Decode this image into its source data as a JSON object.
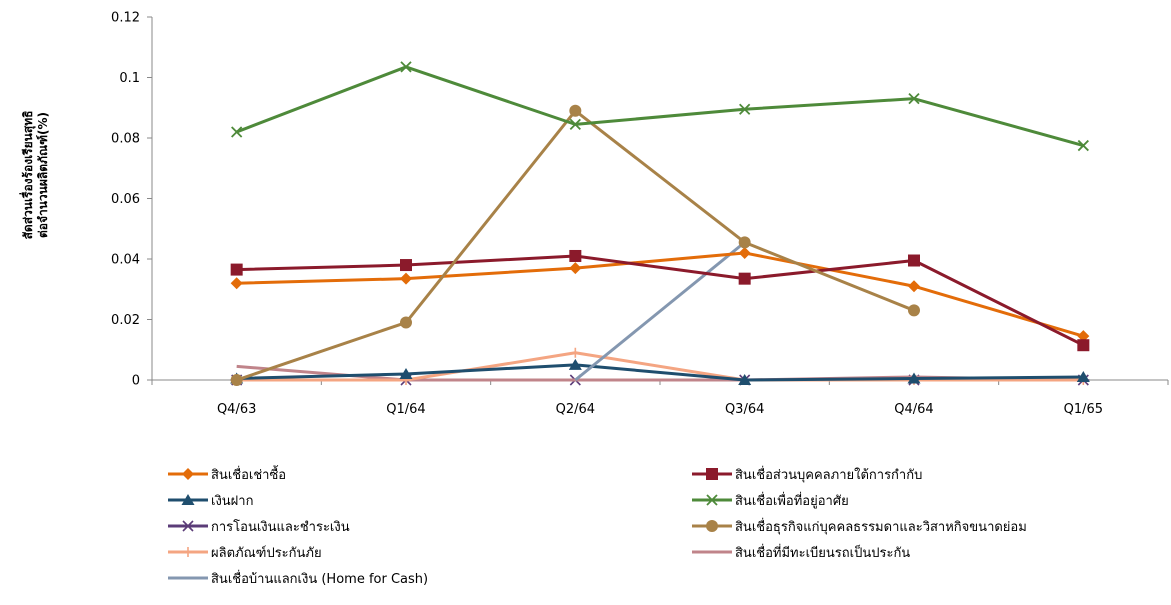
{
  "chart_data": {
    "type": "line",
    "title": "",
    "ylabel": [
      "สัดส่วนเรื่องร้องเรียนสุทธิ",
      "ต่อจำนวนผลิตภัณฑ์(%)"
    ],
    "xlabel": "",
    "categories": [
      "Q4/63",
      "Q1/64",
      "Q2/64",
      "Q3/64",
      "Q4/64",
      "Q1/65"
    ],
    "ylim": [
      0,
      0.12
    ],
    "yticks": [
      "0",
      "0.02",
      "0.04",
      "0.06",
      "0.08",
      "0.1",
      "0.12"
    ],
    "grid": false,
    "legend_position": "bottom",
    "series": [
      {
        "name": "สินเชื่อเช่าซื้อ",
        "color": "#E36C09",
        "marker": "diamond",
        "values": [
          0.032,
          0.0335,
          0.037,
          0.042,
          0.031,
          0.0145
        ]
      },
      {
        "name": "สินเชื่อส่วนบุคคลภายใต้การกำกับ",
        "color": "#8B1A2B",
        "marker": "square",
        "values": [
          0.0365,
          0.038,
          0.041,
          0.0335,
          0.0395,
          0.0115
        ]
      },
      {
        "name": "เงินฝาก",
        "color": "#1F4E6E",
        "marker": "triangle",
        "values": [
          0.0005,
          0.002,
          0.005,
          0.0,
          0.0005,
          0.001
        ]
      },
      {
        "name": "สินเชื่อเพื่อที่อยู่อาศัย",
        "color": "#4E8A3A",
        "marker": "x",
        "values": [
          0.082,
          0.1035,
          0.0845,
          0.0895,
          0.093,
          0.0775
        ]
      },
      {
        "name": "การโอนเงินและชำระเงิน",
        "color": "#5B3C78",
        "marker": "star",
        "values": [
          0.0,
          0.0,
          0.0,
          0.0,
          0.0,
          0.0
        ]
      },
      {
        "name": "สินเชื่อธุรกิจแก่บุคคลธรรมดาและวิสาหกิจขนาดย่อม",
        "color": "#A88248",
        "marker": "circle",
        "values": [
          0.0,
          0.019,
          0.089,
          0.0455,
          0.023,
          null
        ]
      },
      {
        "name": "ผลิตภัณฑ์ประกันภัย",
        "color": "#F4A582",
        "marker": "plus",
        "values": [
          0.0,
          0.0,
          0.009,
          0.0,
          0.0,
          0.0
        ]
      },
      {
        "name": "สินเชื่อที่มีทะเบียนรถเป็นประกัน",
        "color": "#C0848A",
        "marker": "none",
        "values": [
          0.0045,
          0.0,
          0.0,
          0.0,
          0.001,
          0.0
        ]
      },
      {
        "name": "สินเชื่อบ้านแลกเงิน (Home for Cash)",
        "color": "#8497B0",
        "marker": "none",
        "values": [
          null,
          null,
          0.0,
          0.0455,
          null,
          null
        ]
      }
    ]
  }
}
